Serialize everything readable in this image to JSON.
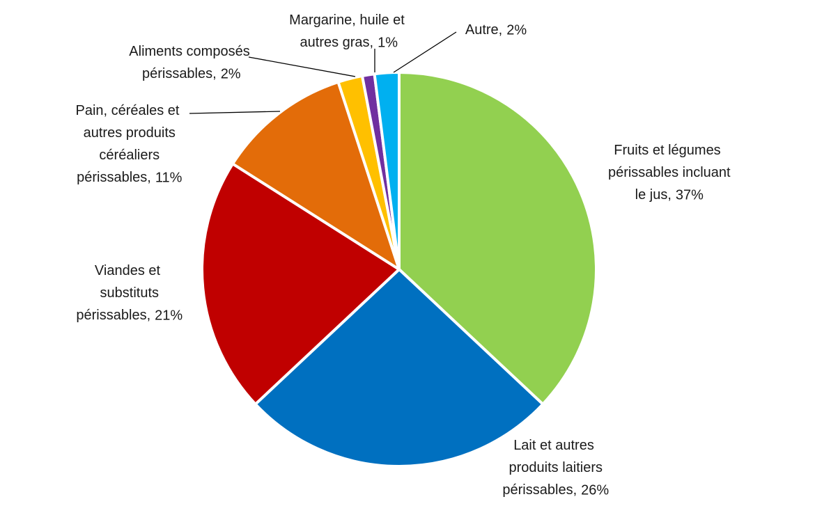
{
  "chart_data": {
    "type": "pie",
    "categories": [
      "Fruits et légumes périssables incluant le jus,",
      "Lait et autres produits laitiers périssables,",
      "Viandes et substituts périssables,",
      "Pain, céréales et autres produits céréaliers périssables,",
      "Aliments composés périssables,",
      "Margarine, huile et autres gras,",
      "Autre,"
    ],
    "values": [
      37,
      26,
      21,
      11,
      2,
      1,
      2
    ],
    "value_labels": [
      "37%",
      "26%",
      "21%",
      "11%",
      "2%",
      "1%",
      "2%"
    ],
    "colors": [
      "#92d050",
      "#0070c0",
      "#c00000",
      "#e36c09",
      "#ffc000",
      "#7030a0",
      "#00b0f0"
    ]
  }
}
